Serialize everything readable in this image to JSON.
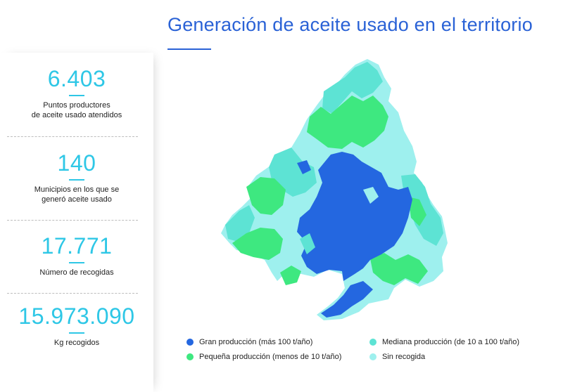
{
  "title": "Generación de aceite usado en el territorio",
  "stats": [
    {
      "value": "6.403",
      "label_line1": "Puntos productores",
      "label_line2": "de aceite usado atendidos"
    },
    {
      "value": "140",
      "label_line1": "Municipios en los que se",
      "label_line2": "generó aceite usado"
    },
    {
      "value": "17.771",
      "label_line1": "Número de recogidas",
      "label_line2": ""
    },
    {
      "value": "15.973.090",
      "label_line1": "Kg recogidos",
      "label_line2": ""
    }
  ],
  "legend": [
    {
      "label": "Gran producción (más 100 t/año)",
      "color": "#2467e0"
    },
    {
      "label": "Pequeña producción (menos de 10 t/año)",
      "color": "#3ee880"
    },
    {
      "label": "Mediana producción (de 10 a 100 t/año)",
      "color": "#5de3d4"
    },
    {
      "label": "Sin recogida",
      "color": "#9ef0ee"
    }
  ],
  "colors": {
    "accent": "#2a62d6",
    "stat_number": "#2ec7e6",
    "gran": "#2467e0",
    "pequena": "#3ee880",
    "mediana": "#5de3d4",
    "sin": "#9ef0ee"
  }
}
